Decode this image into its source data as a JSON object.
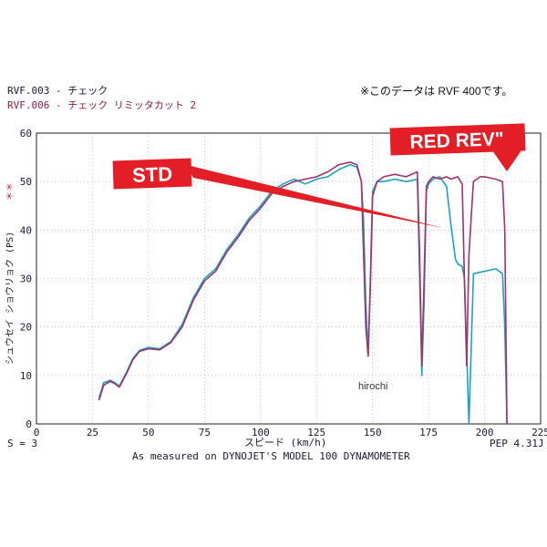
{
  "chart_data": {
    "type": "line",
    "legend": [
      {
        "id": "rvf003",
        "label": "RVF.003 - チェック",
        "color": "#1a1a3a"
      },
      {
        "id": "rvf006",
        "label": "RVF.006 - チェック リミッタカット 2",
        "color": "#8a1f4a"
      }
    ],
    "note": "※このデータは RVF 400です。",
    "ylabel": "シュウセイ ショウリョク (PS)",
    "ylabel_marks": "＊＊",
    "xlabel": "スピード (km/h)",
    "footer_left": "S = 3",
    "footer_right": "PEP 4.31J",
    "footer_center": "As measured on DYNOJET'S MODEL 100 DYNAMOMETER",
    "watermark": "hirochi",
    "xlim": [
      0,
      225
    ],
    "ylim": [
      0,
      60
    ],
    "x_ticks": [
      "0",
      "25",
      "50",
      "75",
      "100",
      "125",
      "150",
      "175",
      "200",
      "225"
    ],
    "y_ticks": [
      "0",
      "10",
      "20",
      "30",
      "40",
      "50",
      "60"
    ],
    "grid": true,
    "annotations": [
      {
        "text": "STD",
        "color": "#e41e26",
        "points_to": [
          185,
          39
        ]
      },
      {
        "text": "RED REV\"",
        "color": "#e41e26",
        "points_to": [
          208,
          51
        ]
      }
    ],
    "series": [
      {
        "name": "RVF.003 - チェック",
        "color": "#1aa3c4",
        "x": [
          28,
          30,
          33,
          35,
          37,
          40,
          43,
          46,
          50,
          55,
          60,
          65,
          70,
          75,
          80,
          85,
          90,
          95,
          100,
          105,
          110,
          115,
          120,
          125,
          130,
          135,
          140,
          143,
          145,
          146,
          147,
          148,
          149,
          150,
          152,
          155,
          160,
          165,
          170,
          171,
          172,
          173,
          174,
          175,
          177,
          180,
          183,
          185,
          187,
          188,
          190,
          191,
          192,
          193,
          195,
          200,
          205,
          208,
          209,
          210
        ],
        "y": [
          5.5,
          8.5,
          9,
          8.5,
          7.8,
          10.5,
          13.5,
          15.2,
          15.8,
          15.5,
          17,
          20.5,
          26,
          30,
          32,
          36,
          39,
          42.5,
          45,
          48,
          49.5,
          50.5,
          49.5,
          50.5,
          51,
          52.5,
          53.5,
          53,
          50,
          42,
          25,
          14,
          30,
          48,
          50,
          50,
          50.5,
          50,
          50.5,
          30,
          10,
          25,
          48,
          49.5,
          50.5,
          51,
          49,
          41,
          34,
          33,
          32.5,
          30,
          15,
          0,
          31,
          31.5,
          32,
          31,
          20,
          0
        ]
      },
      {
        "name": "RVF.006 - チェック リミッタカット 2",
        "color": "#a3326a",
        "x": [
          28,
          30,
          33,
          35,
          37,
          40,
          43,
          46,
          50,
          55,
          60,
          65,
          70,
          75,
          80,
          85,
          90,
          95,
          100,
          105,
          110,
          115,
          120,
          125,
          130,
          135,
          140,
          143,
          145,
          146,
          147,
          148,
          149,
          150,
          152,
          155,
          160,
          165,
          170,
          171,
          172,
          173,
          174,
          175,
          177,
          180,
          183,
          185,
          188,
          190,
          191,
          192,
          193,
          195,
          198,
          200,
          205,
          208,
          209,
          210
        ],
        "y": [
          5,
          8,
          8.8,
          8.3,
          7.6,
          10.2,
          13.2,
          15,
          15.5,
          15.3,
          16.8,
          20,
          25.5,
          29.5,
          31.5,
          35.5,
          38.5,
          42,
          44.5,
          47.5,
          49,
          50,
          50.5,
          51,
          52,
          53.5,
          54,
          53.5,
          50,
          35,
          20,
          14,
          28,
          47,
          50,
          51,
          51.5,
          51,
          52,
          35,
          12,
          30,
          49,
          50,
          51,
          50.5,
          51,
          50.5,
          51,
          49.5,
          30,
          12,
          35,
          50,
          51,
          51,
          50.5,
          50,
          40,
          0
        ]
      }
    ]
  }
}
